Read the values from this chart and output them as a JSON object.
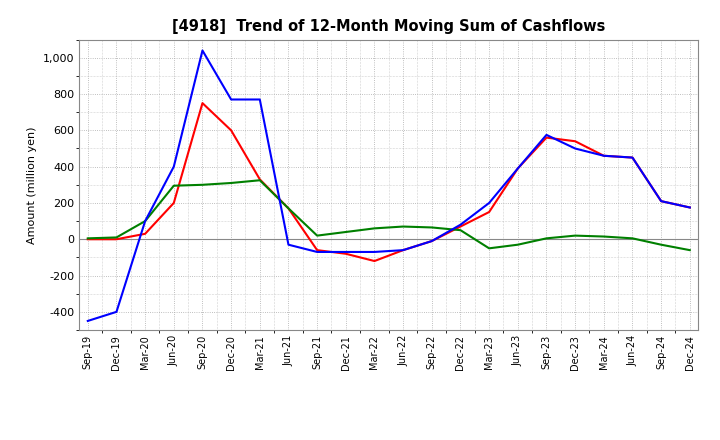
{
  "title": "[4918]  Trend of 12-Month Moving Sum of Cashflows",
  "ylabel": "Amount (million yen)",
  "ylim": [
    -500,
    1100
  ],
  "yticks": [
    -400,
    -200,
    0,
    200,
    400,
    600,
    800,
    1000
  ],
  "background_color": "#ffffff",
  "x_labels": [
    "Sep-19",
    "Dec-19",
    "Mar-20",
    "Jun-20",
    "Sep-20",
    "Dec-20",
    "Mar-21",
    "Jun-21",
    "Sep-21",
    "Dec-21",
    "Mar-22",
    "Jun-22",
    "Sep-22",
    "Dec-22",
    "Mar-23",
    "Jun-23",
    "Sep-23",
    "Dec-23",
    "Mar-24",
    "Jun-24",
    "Sep-24",
    "Dec-24"
  ],
  "operating": [
    0,
    0,
    30,
    200,
    750,
    600,
    330,
    170,
    -60,
    -80,
    -120,
    -60,
    -10,
    70,
    150,
    390,
    560,
    540,
    460,
    450,
    210,
    175
  ],
  "investing": [
    5,
    10,
    100,
    295,
    300,
    310,
    325,
    170,
    20,
    40,
    60,
    70,
    65,
    50,
    -50,
    -30,
    5,
    20,
    15,
    5,
    -30,
    -60
  ],
  "free": [
    -450,
    -400,
    100,
    400,
    1040,
    770,
    770,
    -30,
    -70,
    -70,
    -70,
    -60,
    -10,
    80,
    200,
    390,
    575,
    500,
    460,
    450,
    210,
    175
  ],
  "operating_color": "#ff0000",
  "investing_color": "#008000",
  "free_color": "#0000ff",
  "line_width": 1.5
}
